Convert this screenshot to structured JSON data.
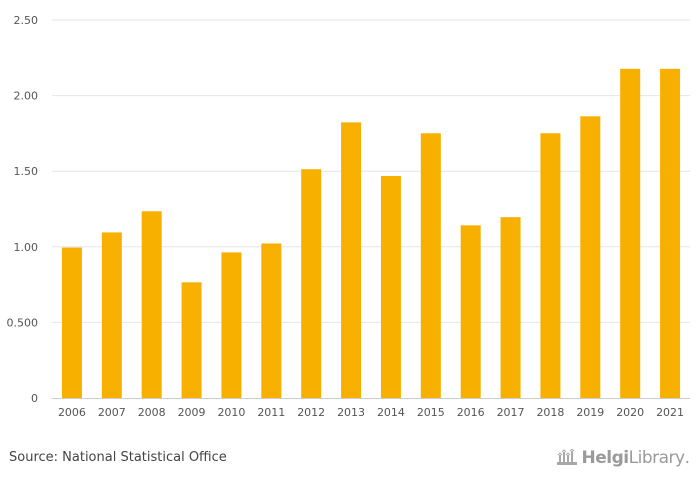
{
  "chart_data": {
    "type": "bar",
    "categories": [
      "2006",
      "2007",
      "2008",
      "2009",
      "2010",
      "2011",
      "2012",
      "2013",
      "2014",
      "2015",
      "2016",
      "2017",
      "2018",
      "2019",
      "2020",
      "2021"
    ],
    "values": [
      0.995,
      1.095,
      1.235,
      0.765,
      0.963,
      1.022,
      1.513,
      1.823,
      1.468,
      1.751,
      1.142,
      1.196,
      1.751,
      1.863,
      2.177,
      2.177
    ],
    "ylim": [
      0,
      2.5
    ],
    "yticks": [
      0,
      0.5,
      1.0,
      1.5,
      2.0,
      2.5
    ],
    "ytick_labels": [
      "0",
      "0.500",
      "1.00",
      "1.50",
      "2.00",
      "2.50"
    ],
    "title": "",
    "xlabel": "",
    "ylabel": "",
    "grid": true,
    "bar_color": "#f7b000",
    "grid_color": "#e6e6e6"
  },
  "footer": {
    "source": "Source: National Statistical Office",
    "logo_helgi": "Helgi",
    "logo_library": "Library",
    "logo_dot": "."
  }
}
